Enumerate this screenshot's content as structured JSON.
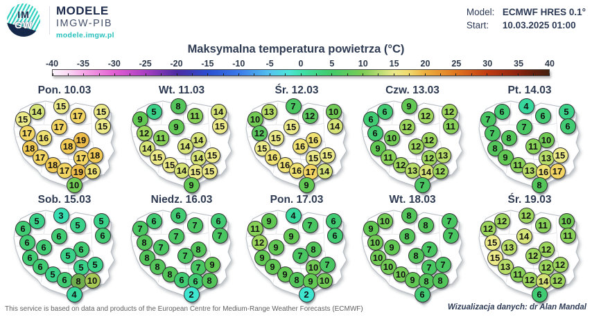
{
  "header": {
    "logo": {
      "circle_line1": "IM",
      "circle_line2": "GW",
      "brand": "MODELE",
      "brand_sub": "IMGW-PIB",
      "brand_url": "modele.imgw.pl"
    },
    "model_label": "Model:",
    "model_value": "ECMWF HRES 0.1°",
    "start_label": "Start:",
    "start_value": "10.03.2025 01:00"
  },
  "title": "Maksymalna temperatura powietrza (°C)",
  "chart_data": {
    "type": "heatmap",
    "title": "Maksymalna temperatura powietrza (°C)",
    "unit": "°C",
    "colorbar": {
      "min": -40,
      "max": 40,
      "ticks": [
        -40,
        -35,
        -30,
        -25,
        -20,
        -15,
        -10,
        -5,
        0,
        5,
        10,
        15,
        20,
        25,
        30,
        35,
        40
      ],
      "gradient": [
        {
          "t": 0,
          "c": "#fdf4fc"
        },
        {
          "t": 3,
          "c": "#fbd9f4"
        },
        {
          "t": 6.25,
          "c": "#f6a8e8"
        },
        {
          "t": 12.5,
          "c": "#e25ed2"
        },
        {
          "t": 18.75,
          "c": "#a93fc2"
        },
        {
          "t": 25,
          "c": "#4c2ba2"
        },
        {
          "t": 31.25,
          "c": "#2a4ed0"
        },
        {
          "t": 37.5,
          "c": "#3b7ae9"
        },
        {
          "t": 43.75,
          "c": "#54c3ef"
        },
        {
          "t": 47.5,
          "c": "#4ce4da"
        },
        {
          "t": 50,
          "c": "#3fe0ab"
        },
        {
          "t": 56.25,
          "c": "#41ca68"
        },
        {
          "t": 62.5,
          "c": "#7ccc55"
        },
        {
          "t": 68.75,
          "c": "#ece98a"
        },
        {
          "t": 71.8,
          "c": "#f0d96d"
        },
        {
          "t": 75,
          "c": "#edb03f"
        },
        {
          "t": 81.25,
          "c": "#e0761f"
        },
        {
          "t": 87.5,
          "c": "#c03c12"
        },
        {
          "t": 93.75,
          "c": "#8c2410"
        },
        {
          "t": 97,
          "c": "#61200c"
        },
        {
          "t": 100,
          "c": "#45200f"
        }
      ]
    },
    "station_positions": [
      [
        45,
        21
      ],
      [
        80,
        13
      ],
      [
        25,
        32
      ],
      [
        104,
        27
      ],
      [
        138,
        21
      ],
      [
        77,
        43
      ],
      [
        140,
        42
      ],
      [
        31,
        52
      ],
      [
        55,
        59
      ],
      [
        109,
        62
      ],
      [
        35,
        74
      ],
      [
        90,
        71
      ],
      [
        50,
        87
      ],
      [
        109,
        88
      ],
      [
        129,
        84
      ],
      [
        68,
        98
      ],
      [
        85,
        106
      ],
      [
        105,
        108
      ],
      [
        125,
        107
      ],
      [
        99,
        127
      ]
    ],
    "days": [
      {
        "label": "Pon. 10.03",
        "values": [
          14,
          15,
          15,
          17,
          15,
          17,
          15,
          17,
          16,
          19,
          18,
          18,
          17,
          17,
          18,
          18,
          17,
          19,
          16,
          10
        ]
      },
      {
        "label": "Wt. 11.03",
        "values": [
          5,
          8,
          9,
          11,
          14,
          9,
          15,
          12,
          11,
          14,
          14,
          14,
          15,
          14,
          15,
          15,
          14,
          15,
          15,
          9
        ]
      },
      {
        "label": "Śr. 12.03",
        "values": [
          13,
          7,
          10,
          12,
          10,
          15,
          14,
          12,
          15,
          16,
          15,
          16,
          16,
          15,
          15,
          16,
          16,
          17,
          14,
          9
        ]
      },
      {
        "label": "Czw. 13.03",
        "values": [
          6,
          9,
          6,
          12,
          12,
          12,
          11,
          6,
          10,
          12,
          9,
          12,
          11,
          12,
          13,
          12,
          13,
          14,
          12,
          7
        ]
      },
      {
        "label": "Pt. 14.03",
        "values": [
          6,
          4,
          7,
          6,
          5,
          7,
          6,
          7,
          8,
          10,
          8,
          11,
          9,
          13,
          15,
          11,
          13,
          16,
          17,
          8
        ]
      },
      {
        "label": "Sob. 15.03",
        "values": [
          5,
          3,
          6,
          5,
          5,
          6,
          6,
          6,
          6,
          6,
          6,
          5,
          6,
          5,
          5,
          5,
          6,
          8,
          10,
          4
        ]
      },
      {
        "label": "Niedz. 16.03",
        "values": [
          6,
          6,
          7,
          7,
          6,
          7,
          7,
          8,
          7,
          8,
          8,
          7,
          8,
          7,
          9,
          8,
          6,
          6,
          8,
          2
        ]
      },
      {
        "label": "Pon. 17.03",
        "values": [
          9,
          4,
          11,
          7,
          6,
          9,
          6,
          12,
          9,
          8,
          9,
          7,
          9,
          10,
          7,
          9,
          8,
          9,
          10,
          2
        ]
      },
      {
        "label": "Wt. 18.03",
        "values": [
          10,
          8,
          9,
          8,
          7,
          8,
          7,
          10,
          9,
          7,
          10,
          8,
          10,
          7,
          7,
          10,
          9,
          8,
          8,
          6
        ]
      },
      {
        "label": "Śr. 19.03",
        "values": [
          12,
          12,
          12,
          11,
          10,
          14,
          11,
          15,
          13,
          12,
          15,
          12,
          13,
          12,
          12,
          11,
          12,
          14,
          12,
          6
        ]
      }
    ],
    "value_colors": {
      "2": "#3ee6cf",
      "3": "#38deb2",
      "4": "#36d89d",
      "5": "#3ad188",
      "6": "#41cb72",
      "7": "#49c662",
      "8": "#53c55a",
      "9": "#62c854",
      "10": "#71cb55",
      "11": "#87d158",
      "12": "#9dd65d",
      "13": "#b7dc67",
      "14": "#d6e377",
      "15": "#edea89",
      "16": "#f1e274",
      "17": "#f3d563",
      "18": "#f1c955",
      "19": "#eebc48"
    },
    "color_overrides": {
      "2": {
        "3": "#5cc75f",
        "7": "#5cc75f"
      },
      "5": {
        "17": "#6fae4d",
        "18": "#a6c854"
      }
    }
  },
  "footer": {
    "left": "This service is based on data and products of the European Centre for Medium-Range Weather Forecasts (ECMWF)",
    "right": "Wizualizacja danych: dr Alan Mandal"
  }
}
